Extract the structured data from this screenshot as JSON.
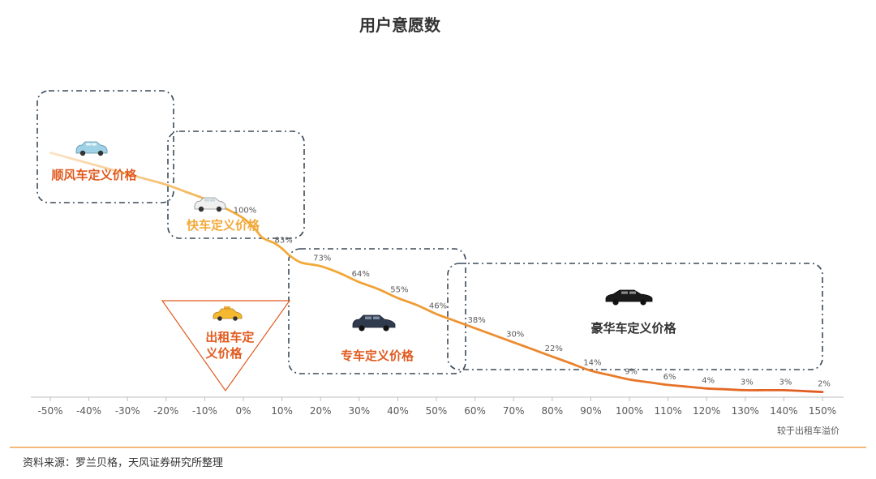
{
  "chart_data": {
    "type": "line",
    "title": "用户意愿数",
    "xlabel": "较于出租车溢价",
    "ylabel": "",
    "x_tick_labels": [
      "-50%",
      "-40%",
      "-30%",
      "-20%",
      "-10%",
      "0%",
      "10%",
      "20%",
      "30%",
      "40%",
      "50%",
      "60%",
      "70%",
      "80%",
      "90%",
      "100%",
      "110%",
      "120%",
      "130%",
      "140%",
      "150%"
    ],
    "xlim": [
      -55,
      155
    ],
    "ylim": [
      0,
      150
    ],
    "series": [
      {
        "values_x": [
          -50,
          -45,
          -40,
          -35,
          -30,
          -25,
          -20,
          -15,
          -10,
          -5,
          0,
          3,
          5,
          8,
          10,
          12,
          15,
          20,
          25,
          30,
          35,
          40,
          45,
          50,
          55,
          60,
          65,
          70,
          75,
          80,
          85,
          90,
          95,
          100,
          105,
          110,
          115,
          120,
          125,
          130,
          135,
          140,
          145,
          150
        ],
        "values_y": [
          137,
          134,
          131,
          128,
          125,
          122,
          119,
          115,
          111,
          106,
          100,
          94,
          89,
          86,
          83,
          79,
          75,
          73,
          69,
          64,
          60,
          55,
          51,
          46,
          42,
          38,
          34,
          30,
          26,
          22,
          18,
          14,
          11.5,
          9,
          7.5,
          6,
          5,
          4,
          3.5,
          3,
          3,
          3,
          2.5,
          2
        ]
      }
    ],
    "data_labels": [
      {
        "x": 0,
        "y": 100,
        "text": "100%"
      },
      {
        "x": 10,
        "y": 83,
        "text": "83%"
      },
      {
        "x": 20,
        "y": 73,
        "text": "73%"
      },
      {
        "x": 30,
        "y": 64,
        "text": "64%"
      },
      {
        "x": 40,
        "y": 55,
        "text": "55%"
      },
      {
        "x": 50,
        "y": 46,
        "text": "46%"
      },
      {
        "x": 60,
        "y": 38,
        "text": "38%"
      },
      {
        "x": 70,
        "y": 30,
        "text": "30%"
      },
      {
        "x": 80,
        "y": 22,
        "text": "22%"
      },
      {
        "x": 90,
        "y": 14,
        "text": "14%"
      },
      {
        "x": 100,
        "y": 9,
        "text": "9%"
      },
      {
        "x": 110,
        "y": 6,
        "text": "6%"
      },
      {
        "x": 120,
        "y": 4,
        "text": "4%"
      },
      {
        "x": 130,
        "y": 3,
        "text": "3%"
      },
      {
        "x": 140,
        "y": 3,
        "text": "3%"
      },
      {
        "x": 150,
        "y": 2,
        "text": "2%"
      }
    ],
    "segments": [
      {
        "label": "顺风车定义价格",
        "color": "#e05a1f",
        "icon": "car-icon"
      },
      {
        "label": "快车定义价格",
        "color": "#f2a93b",
        "icon": "car-icon"
      },
      {
        "label": "出租车定\n义价格",
        "color": "#e05a1f",
        "icon": "taxi-icon"
      },
      {
        "label": "专车定义价格",
        "color": "#e05a1f",
        "icon": "car-icon"
      },
      {
        "label": "豪华车定义价格",
        "color": "#333333",
        "icon": "luxury-car-icon"
      }
    ],
    "colors": {
      "line_start": "#fbe3c7",
      "line_mid": "#f2a93b",
      "line_end": "#e05a1f",
      "footer_rule": "#f0a04b",
      "box_border": "#3a4a5a"
    }
  },
  "footer": {
    "source": "资料来源：罗兰贝格，天风证券研究所整理"
  }
}
